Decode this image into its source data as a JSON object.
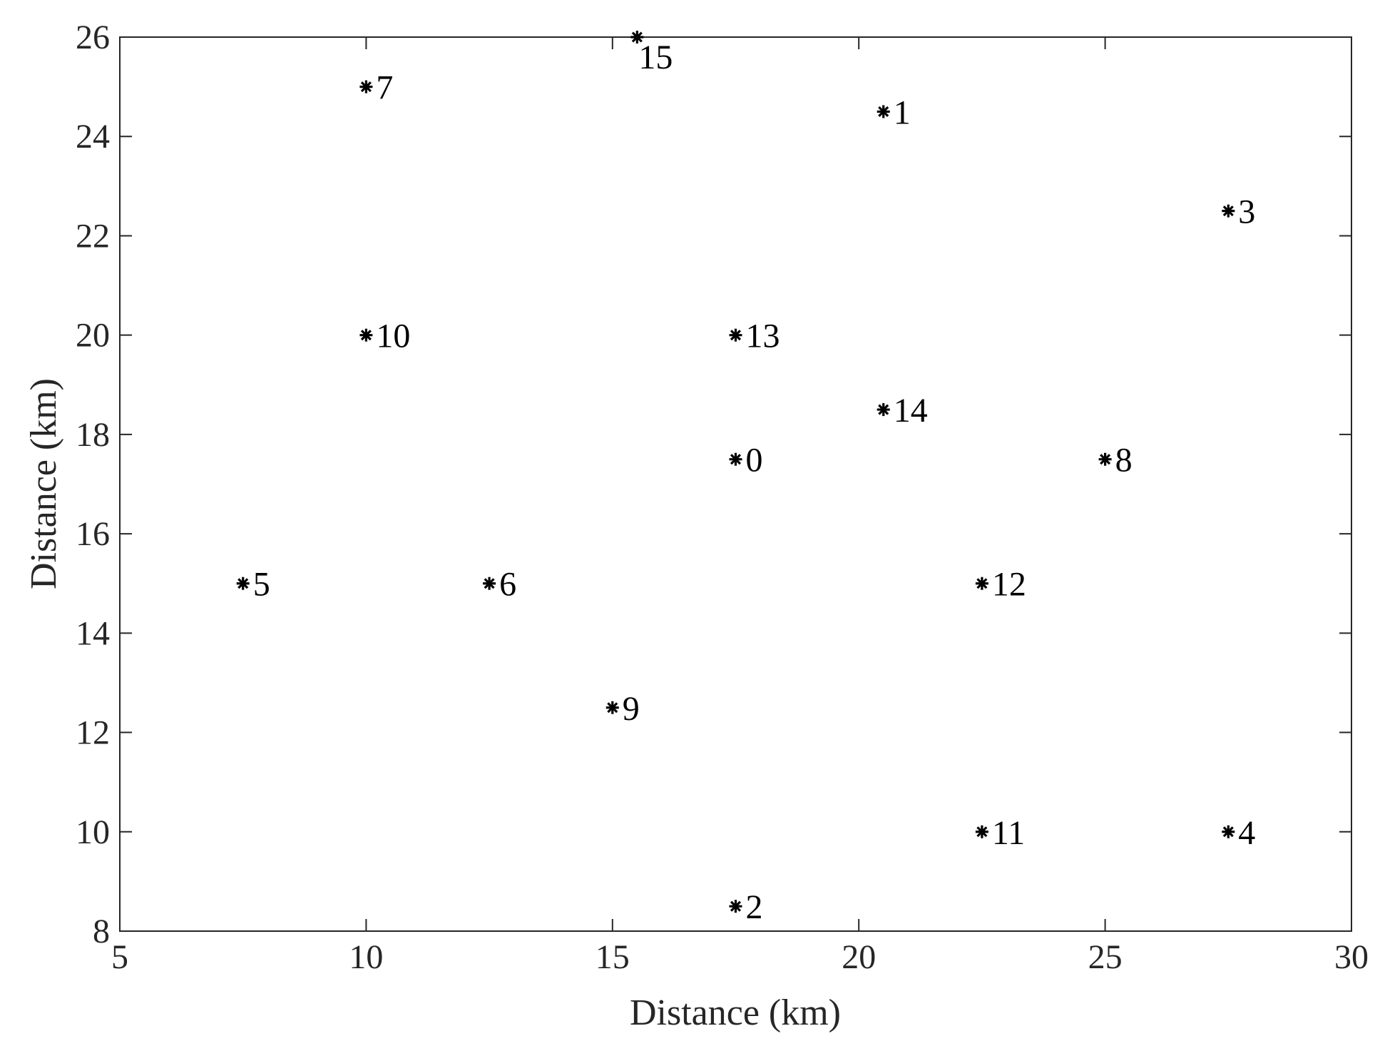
{
  "chart_data": {
    "type": "scatter",
    "title": "",
    "xlabel": "Distance (km)",
    "ylabel": "Distance (km)",
    "xlim": [
      5,
      30
    ],
    "ylim": [
      8,
      26
    ],
    "xticks": [
      5,
      10,
      15,
      20,
      25,
      30
    ],
    "yticks": [
      8,
      10,
      12,
      14,
      16,
      18,
      20,
      22,
      24,
      26
    ],
    "grid": false,
    "marker": "asterisk",
    "colors": {
      "marker": "#000000",
      "axes": "#262626"
    },
    "points": [
      {
        "label": "0",
        "x": 17.5,
        "y": 17.5
      },
      {
        "label": "1",
        "x": 20.5,
        "y": 24.5
      },
      {
        "label": "2",
        "x": 17.5,
        "y": 8.5
      },
      {
        "label": "3",
        "x": 27.5,
        "y": 22.5
      },
      {
        "label": "4",
        "x": 27.5,
        "y": 10
      },
      {
        "label": "5",
        "x": 7.5,
        "y": 15
      },
      {
        "label": "6",
        "x": 12.5,
        "y": 15
      },
      {
        "label": "7",
        "x": 10,
        "y": 25
      },
      {
        "label": "8",
        "x": 25,
        "y": 17.5
      },
      {
        "label": "9",
        "x": 15,
        "y": 12.5
      },
      {
        "label": "10",
        "x": 10,
        "y": 20
      },
      {
        "label": "11",
        "x": 22.5,
        "y": 10
      },
      {
        "label": "12",
        "x": 22.5,
        "y": 15
      },
      {
        "label": "13",
        "x": 17.5,
        "y": 20
      },
      {
        "label": "14",
        "x": 20.5,
        "y": 18.5
      },
      {
        "label": "15",
        "x": 15.5,
        "y": 26
      }
    ]
  }
}
